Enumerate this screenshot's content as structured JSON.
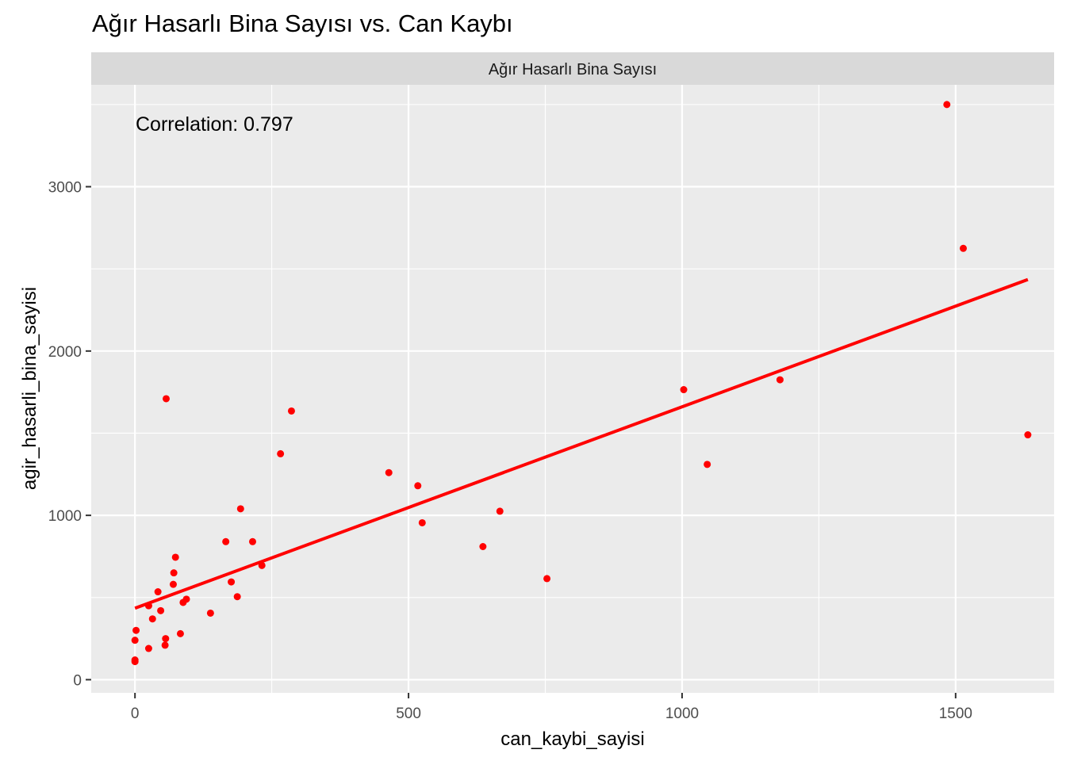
{
  "chart_data": {
    "type": "scatter",
    "title": "Ağır Hasarlı Bina Sayısı vs. Can Kaybı",
    "facet_label": "Ağır Hasarlı Bina Sayısı",
    "xlabel": "can_kaybi_sayisi",
    "ylabel": "agir_hasarli_bina_sayisi",
    "annotation": "Correlation: 0.797",
    "xlim": [
      -80,
      1680
    ],
    "ylim": [
      -80,
      3620
    ],
    "x_ticks": [
      0,
      500,
      1000,
      1500
    ],
    "y_ticks": [
      0,
      1000,
      2000,
      3000
    ],
    "grid": true,
    "point_color": "#ff0000",
    "line_color": "#ff0000",
    "panel_background": "#ebebeb",
    "strip_background": "#d9d9d9",
    "points": [
      {
        "x": 0,
        "y": 110
      },
      {
        "x": 0,
        "y": 120
      },
      {
        "x": 0,
        "y": 240
      },
      {
        "x": 2,
        "y": 300
      },
      {
        "x": 25,
        "y": 190
      },
      {
        "x": 25,
        "y": 450
      },
      {
        "x": 32,
        "y": 370
      },
      {
        "x": 42,
        "y": 535
      },
      {
        "x": 47,
        "y": 420
      },
      {
        "x": 55,
        "y": 210
      },
      {
        "x": 56,
        "y": 250
      },
      {
        "x": 57,
        "y": 1710
      },
      {
        "x": 70,
        "y": 580
      },
      {
        "x": 71,
        "y": 650
      },
      {
        "x": 74,
        "y": 745
      },
      {
        "x": 83,
        "y": 280
      },
      {
        "x": 88,
        "y": 470
      },
      {
        "x": 94,
        "y": 490
      },
      {
        "x": 138,
        "y": 405
      },
      {
        "x": 166,
        "y": 840
      },
      {
        "x": 176,
        "y": 595
      },
      {
        "x": 187,
        "y": 505
      },
      {
        "x": 193,
        "y": 1040
      },
      {
        "x": 215,
        "y": 840
      },
      {
        "x": 232,
        "y": 695
      },
      {
        "x": 266,
        "y": 1375
      },
      {
        "x": 286,
        "y": 1635
      },
      {
        "x": 464,
        "y": 1260
      },
      {
        "x": 517,
        "y": 1180
      },
      {
        "x": 525,
        "y": 955
      },
      {
        "x": 636,
        "y": 810
      },
      {
        "x": 667,
        "y": 1025
      },
      {
        "x": 753,
        "y": 615
      },
      {
        "x": 1003,
        "y": 1765
      },
      {
        "x": 1046,
        "y": 1310
      },
      {
        "x": 1179,
        "y": 1825
      },
      {
        "x": 1484,
        "y": 3500
      },
      {
        "x": 1514,
        "y": 2625
      },
      {
        "x": 1632,
        "y": 1490
      }
    ],
    "fit_line": {
      "x": [
        0,
        1632
      ],
      "y": [
        435,
        2435
      ]
    }
  }
}
